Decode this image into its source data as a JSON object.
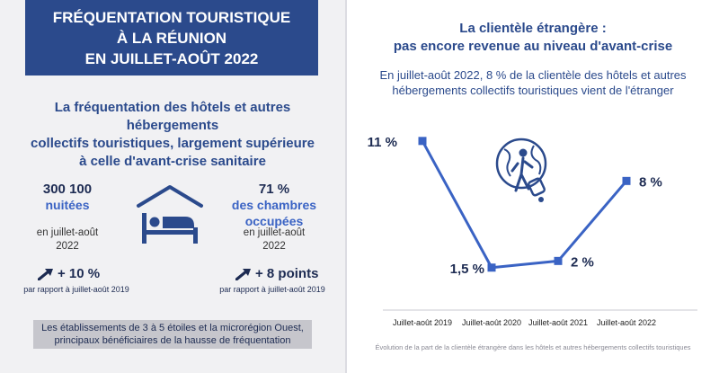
{
  "left": {
    "banner": {
      "line1": "FRÉQUENTATION TOURISTIQUE",
      "line2": "À LA RÉUNION",
      "line3": "EN JUILLET-AOÛT 2022"
    },
    "headline": {
      "line1": "La fréquentation des hôtels et autres hébergements",
      "line2": "collectifs touristiques, largement supérieure",
      "line3": "à celle d'avant-crise sanitaire"
    },
    "stat1": {
      "value": "300 100",
      "label": "nuitées",
      "period_line1": "en juillet-août",
      "period_line2": "2022",
      "evolution": "+ 10 %",
      "compare": "par rapport à juillet-août 2019"
    },
    "stat2": {
      "value": "71 %",
      "label_line1": "des chambres",
      "label_line2": "occupées",
      "period_line1": "en juillet-août",
      "period_line2": "2022",
      "evolution": "+ 8 points",
      "compare": "par rapport à juillet-août 2019"
    },
    "note": {
      "line1": "Les établissements de 3 à 5 étoiles et la microrégion Ouest,",
      "line2": "principaux bénéficiaires de la hausse de fréquentation"
    },
    "icons": {
      "center": "hotel-bed-icon",
      "up_arrow": "trend-up-arrow-icon"
    }
  },
  "right": {
    "title_line1": "La clientèle étrangère :",
    "title_line2": "pas encore revenue au niveau d'avant-crise",
    "subtitle_line1": "En juillet-août 2022, 8 % de la clientèle des hôtels et autres",
    "subtitle_line2": "hébergements collectifs touristiques vient de l'étranger",
    "source": "Évolution de la part de la clientèle étrangère dans les hôtels et autres hébergements collectifs touristiques",
    "icon": "globe-traveler-icon"
  },
  "colors": {
    "banner": "#2b4a8c",
    "accent": "#3a63c4",
    "line": "#3a63c4",
    "dark": "#1d2b52",
    "note_bg": "#c6c6cc"
  },
  "chart_data": {
    "type": "line",
    "categories": [
      "Juillet-août 2019",
      "Juillet-août 2020",
      "Juillet-août 2021",
      "Juillet-août 2022"
    ],
    "values": [
      11,
      1.5,
      2,
      8
    ],
    "data_labels": [
      "11 %",
      "1,5 %",
      "2 %",
      "8 %"
    ],
    "ylim": [
      0,
      12
    ],
    "grid": false
  }
}
